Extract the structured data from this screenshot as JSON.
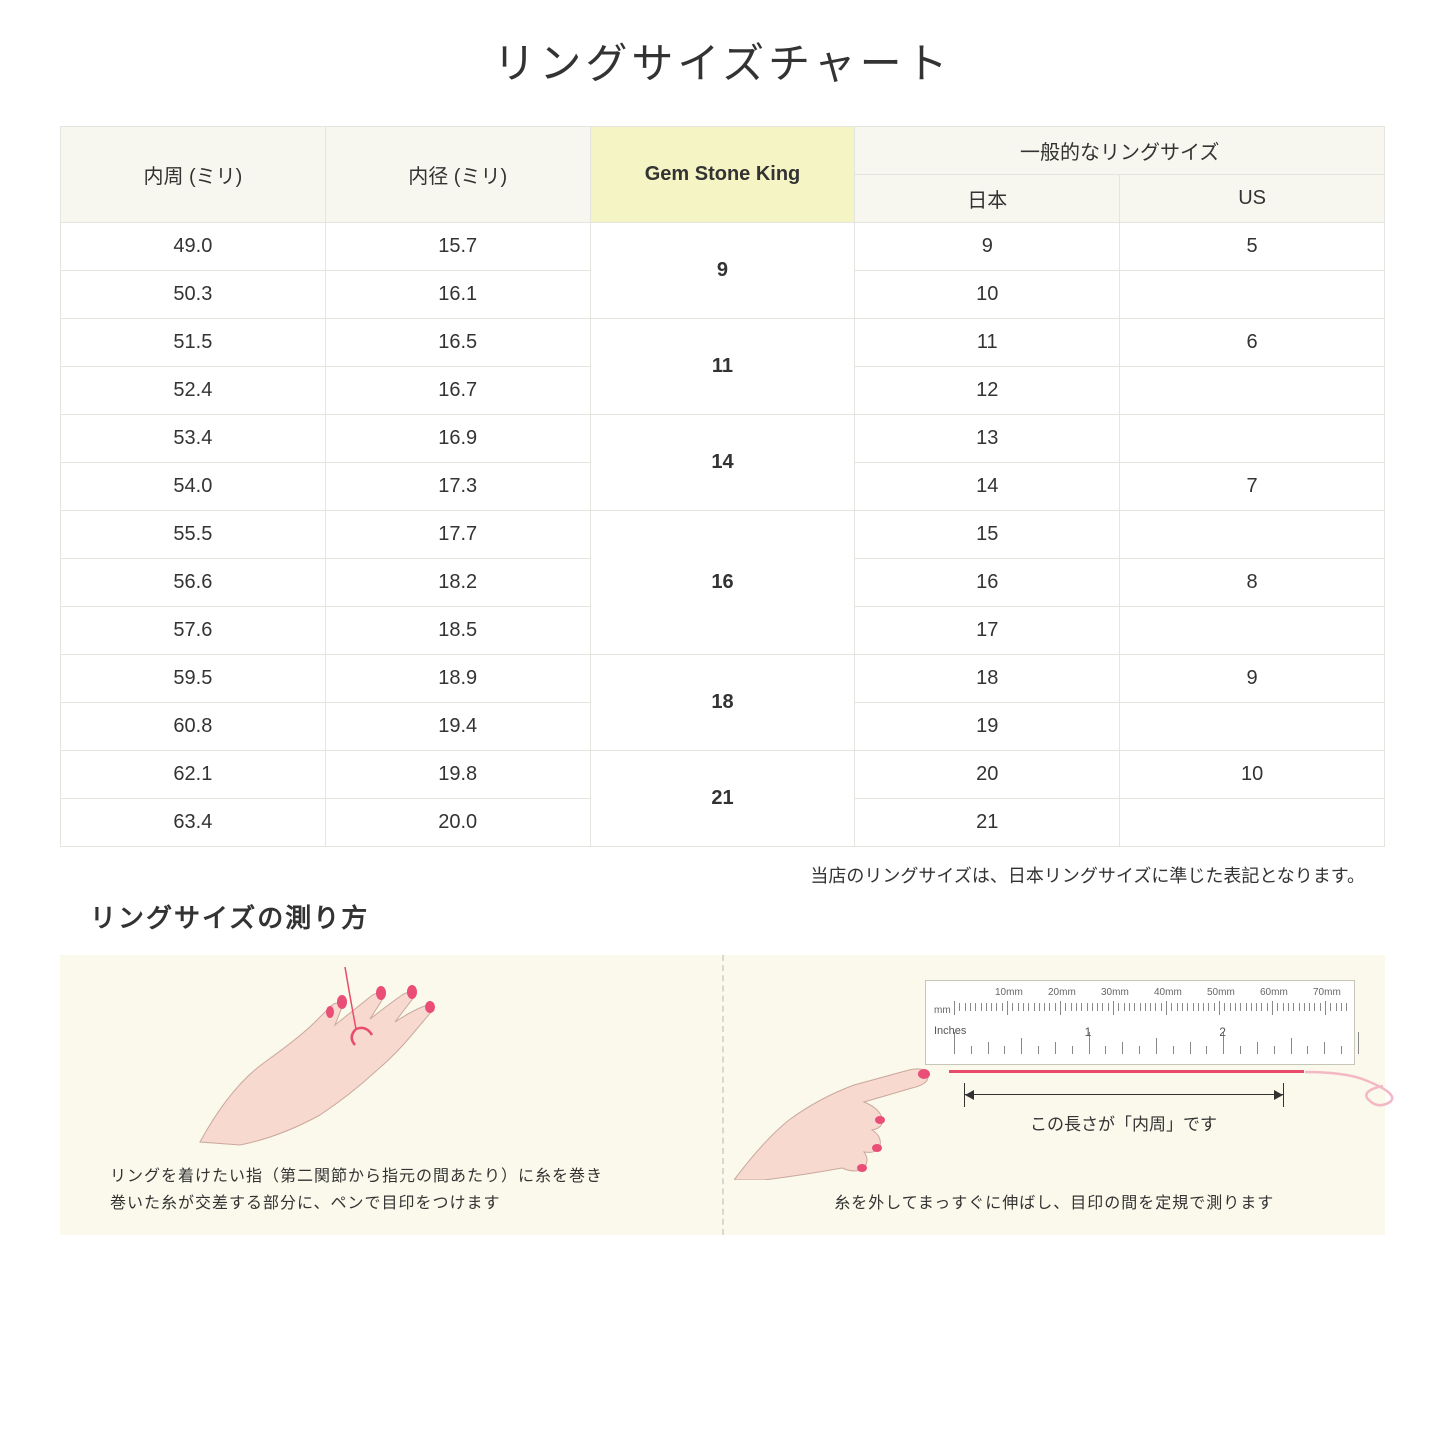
{
  "title": "リングサイズチャート",
  "table": {
    "headers": {
      "col1": "内周 (ミリ)",
      "col2": "内径 (ミリ)",
      "col3": "Gem Stone King",
      "col4_group": "一般的なリングサイズ",
      "col4a": "日本",
      "col4b": "US"
    },
    "groups": [
      {
        "gsk": "9",
        "rows": [
          {
            "c": "49.0",
            "d": "15.7",
            "jp": "9",
            "us": "5"
          },
          {
            "c": "50.3",
            "d": "16.1",
            "jp": "10",
            "us": ""
          }
        ]
      },
      {
        "gsk": "11",
        "rows": [
          {
            "c": "51.5",
            "d": "16.5",
            "jp": "11",
            "us": "6"
          },
          {
            "c": "52.4",
            "d": "16.7",
            "jp": "12",
            "us": ""
          }
        ]
      },
      {
        "gsk": "14",
        "rows": [
          {
            "c": "53.4",
            "d": "16.9",
            "jp": "13",
            "us": ""
          },
          {
            "c": "54.0",
            "d": "17.3",
            "jp": "14",
            "us": "7"
          }
        ]
      },
      {
        "gsk": "16",
        "rows": [
          {
            "c": "55.5",
            "d": "17.7",
            "jp": "15",
            "us": ""
          },
          {
            "c": "56.6",
            "d": "18.2",
            "jp": "16",
            "us": "8"
          },
          {
            "c": "57.6",
            "d": "18.5",
            "jp": "17",
            "us": ""
          }
        ]
      },
      {
        "gsk": "18",
        "rows": [
          {
            "c": "59.5",
            "d": "18.9",
            "jp": "18",
            "us": "9"
          },
          {
            "c": "60.8",
            "d": "19.4",
            "jp": "19",
            "us": ""
          }
        ]
      },
      {
        "gsk": "21",
        "rows": [
          {
            "c": "62.1",
            "d": "19.8",
            "jp": "20",
            "us": "10"
          },
          {
            "c": "63.4",
            "d": "20.0",
            "jp": "21",
            "us": ""
          }
        ]
      }
    ]
  },
  "note": "当店のリングサイズは、日本リングサイズに準じた表記となります。",
  "subtitle": "リングサイズの測り方",
  "instruction_left": "リングを着けたい指（第二関節から指元の間あたり）に糸を巻き\n巻いた糸が交差する部分に、ペンで目印をつけます",
  "instruction_right": "糸を外してまっすぐに伸ばし、目印の間を定規で測ります",
  "measure_label": "この長さが「内周」です",
  "ruler": {
    "mm_label": "mm",
    "in_label": "Inches",
    "mm_marks": [
      "10mm",
      "20mm",
      "30mm",
      "40mm",
      "50mm",
      "60mm",
      "70mm"
    ],
    "in_marks": [
      "1",
      "2"
    ]
  },
  "colors": {
    "header_bg": "#f7f7ef",
    "highlight_bg": "#f5f4c5",
    "border": "#e5e5e0",
    "panel_bg": "#faf9eb",
    "skin": "#f7d9cf",
    "nail": "#ea4e77",
    "thread": "#e94b6a"
  }
}
